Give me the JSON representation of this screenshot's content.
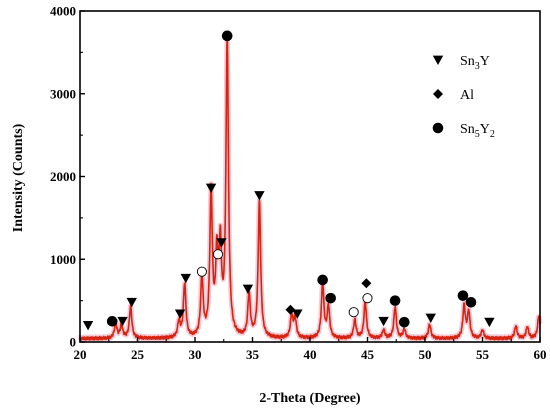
{
  "colors": {
    "pattern_line": "#d62410",
    "pattern_glow": "#f2b7c8",
    "axis": "#000000",
    "background": "#ffffff"
  },
  "chart_data": {
    "type": "line",
    "title": "",
    "xlabel": "2-Theta (Degree)",
    "ylabel": "Intensity (Counts)",
    "xlim": [
      20,
      60
    ],
    "ylim": [
      0,
      4000
    ],
    "x_ticks": [
      20,
      25,
      30,
      35,
      40,
      45,
      50,
      55,
      60
    ],
    "y_ticks": [
      0,
      1000,
      2000,
      3000,
      4000
    ],
    "grid": false,
    "legend_position": "top-right",
    "legend": [
      {
        "symbol": "triangle-down",
        "label": "Sn",
        "sub": "3",
        "label2": "Y",
        "sub2": ""
      },
      {
        "symbol": "diamond",
        "label": "Al",
        "sub": "",
        "label2": "",
        "sub2": ""
      },
      {
        "symbol": "filled-circle",
        "label": "Sn",
        "sub": "5",
        "label2": "Y",
        "sub2": "2"
      }
    ],
    "baseline": 40,
    "peaks": [
      {
        "x": 23.1,
        "y": 180
      },
      {
        "x": 23.6,
        "y": 160
      },
      {
        "x": 24.4,
        "y": 380
      },
      {
        "x": 28.6,
        "y": 190
      },
      {
        "x": 29.1,
        "y": 650
      },
      {
        "x": 30.6,
        "y": 720
      },
      {
        "x": 31.4,
        "y": 1730
      },
      {
        "x": 31.9,
        "y": 900
      },
      {
        "x": 32.2,
        "y": 1000
      },
      {
        "x": 32.8,
        "y": 3580
      },
      {
        "x": 34.7,
        "y": 520
      },
      {
        "x": 35.6,
        "y": 1640
      },
      {
        "x": 38.4,
        "y": 260
      },
      {
        "x": 38.7,
        "y": 240
      },
      {
        "x": 41.1,
        "y": 660
      },
      {
        "x": 41.6,
        "y": 380
      },
      {
        "x": 43.9,
        "y": 220
      },
      {
        "x": 44.8,
        "y": 440
      },
      {
        "x": 46.4,
        "y": 100
      },
      {
        "x": 47.4,
        "y": 380
      },
      {
        "x": 48.2,
        "y": 110
      },
      {
        "x": 50.4,
        "y": 170
      },
      {
        "x": 53.4,
        "y": 390
      },
      {
        "x": 53.8,
        "y": 320
      },
      {
        "x": 55.0,
        "y": 100
      },
      {
        "x": 57.9,
        "y": 150
      },
      {
        "x": 58.9,
        "y": 140
      },
      {
        "x": 59.9,
        "y": 270
      }
    ],
    "markers": [
      {
        "type": "triangle-down",
        "x": 20.7,
        "y": 200
      },
      {
        "type": "filled-circle",
        "x": 22.8,
        "y": 250
      },
      {
        "type": "triangle-down",
        "x": 23.7,
        "y": 250
      },
      {
        "type": "triangle-down",
        "x": 24.5,
        "y": 480
      },
      {
        "type": "triangle-down",
        "x": 28.7,
        "y": 340
      },
      {
        "type": "triangle-down",
        "x": 29.2,
        "y": 770
      },
      {
        "type": "open-circle",
        "x": 30.6,
        "y": 850
      },
      {
        "type": "triangle-down",
        "x": 31.4,
        "y": 1860
      },
      {
        "type": "open-circle",
        "x": 32.0,
        "y": 1060
      },
      {
        "type": "triangle-down",
        "x": 32.3,
        "y": 1200
      },
      {
        "type": "filled-circle",
        "x": 32.8,
        "y": 3700
      },
      {
        "type": "triangle-down",
        "x": 34.6,
        "y": 640
      },
      {
        "type": "triangle-down",
        "x": 35.6,
        "y": 1770
      },
      {
        "type": "diamond",
        "x": 38.3,
        "y": 390
      },
      {
        "type": "triangle-down",
        "x": 38.9,
        "y": 340
      },
      {
        "type": "filled-circle",
        "x": 41.1,
        "y": 750
      },
      {
        "type": "filled-circle",
        "x": 41.8,
        "y": 530
      },
      {
        "type": "open-circle",
        "x": 43.8,
        "y": 360
      },
      {
        "type": "diamond",
        "x": 44.9,
        "y": 710
      },
      {
        "type": "open-circle",
        "x": 45.0,
        "y": 530
      },
      {
        "type": "triangle-down",
        "x": 46.4,
        "y": 250
      },
      {
        "type": "filled-circle",
        "x": 47.4,
        "y": 500
      },
      {
        "type": "filled-circle",
        "x": 48.2,
        "y": 240
      },
      {
        "type": "triangle-down",
        "x": 50.5,
        "y": 290
      },
      {
        "type": "filled-circle",
        "x": 53.3,
        "y": 560
      },
      {
        "type": "filled-circle",
        "x": 54.0,
        "y": 480
      },
      {
        "type": "triangle-down",
        "x": 55.6,
        "y": 240
      }
    ]
  }
}
